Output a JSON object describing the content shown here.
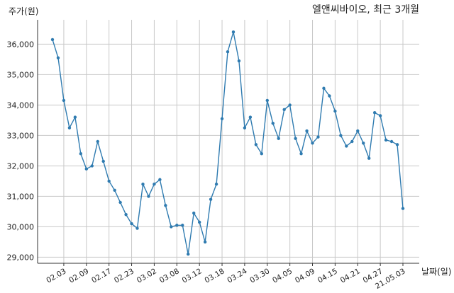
{
  "chart_data": {
    "type": "line",
    "title": "엘앤씨바이오, 최근 3개월",
    "ylabel": "주가(원)",
    "xlabel": "날짜(일)",
    "ylim": [
      28800,
      36800
    ],
    "yticks": [
      29000,
      30000,
      31000,
      32000,
      33000,
      34000,
      35000,
      36000
    ],
    "ytick_labels": [
      "29,000",
      "30,000",
      "31,000",
      "32,000",
      "33,000",
      "34,000",
      "35,000",
      "36,000"
    ],
    "xticks": [
      {
        "label": "02.03",
        "index": 2
      },
      {
        "label": "02.09",
        "index": 6
      },
      {
        "label": "02.17",
        "index": 10
      },
      {
        "label": "02.23",
        "index": 14
      },
      {
        "label": "03.02",
        "index": 18
      },
      {
        "label": "03.08",
        "index": 22
      },
      {
        "label": "03.12",
        "index": 26
      },
      {
        "label": "03.18",
        "index": 30
      },
      {
        "label": "03.24",
        "index": 34
      },
      {
        "label": "03.30",
        "index": 38
      },
      {
        "label": "04.05",
        "index": 42
      },
      {
        "label": "04.09",
        "index": 46
      },
      {
        "label": "04.15",
        "index": 50
      },
      {
        "label": "04.21",
        "index": 54
      },
      {
        "label": "04.27",
        "index": 58
      },
      {
        "label": "21.05.03",
        "index": 62
      }
    ],
    "grid": true,
    "series": [
      {
        "color": "#2f7bb0",
        "values": [
          36150,
          35550,
          34150,
          33250,
          33600,
          32400,
          31900,
          32000,
          32800,
          32150,
          31500,
          31200,
          30800,
          30400,
          30100,
          29950,
          31400,
          31000,
          31400,
          31550,
          30700,
          30000,
          30050,
          30050,
          29100,
          30450,
          30150,
          29500,
          30900,
          31400,
          33550,
          35750,
          36400,
          35450,
          33250,
          33600,
          32700,
          32400,
          34150,
          33400,
          32900,
          33850,
          34000,
          32900,
          32400,
          33150,
          32750,
          32950,
          34550,
          34300,
          33800,
          33000,
          32650,
          32800,
          33150,
          32750,
          32250,
          33750,
          33650,
          32850,
          32800,
          32700,
          30600
        ]
      }
    ]
  }
}
